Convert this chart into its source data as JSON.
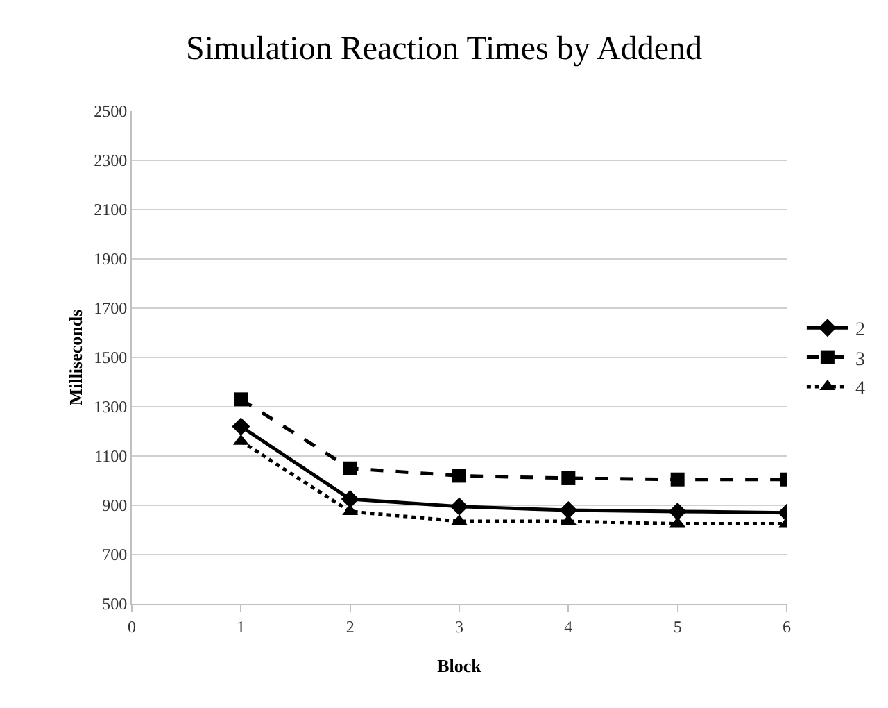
{
  "chart_data": {
    "type": "line",
    "title": "Simulation Reaction Times by Addend",
    "xlabel": "Block",
    "ylabel": "Milliseconds",
    "x": [
      1,
      2,
      3,
      4,
      5,
      6
    ],
    "series": [
      {
        "name": "2",
        "color": "#000000",
        "marker": "diamond",
        "line_style": "solid",
        "values": [
          1220,
          925,
          895,
          880,
          875,
          870
        ]
      },
      {
        "name": "3",
        "color": "#000000",
        "marker": "square",
        "line_style": "dashed",
        "values": [
          1330,
          1050,
          1020,
          1010,
          1005,
          1005
        ]
      },
      {
        "name": "4",
        "color": "#000000",
        "marker": "triangle",
        "line_style": "dotted",
        "values": [
          1160,
          875,
          835,
          835,
          825,
          825
        ]
      }
    ],
    "xlim": [
      0,
      6
    ],
    "xticks": [
      0,
      1,
      2,
      3,
      4,
      5,
      6
    ],
    "ylim": [
      500,
      2500
    ],
    "yticks": [
      500,
      700,
      900,
      1100,
      1300,
      1500,
      1700,
      1900,
      2100,
      2300,
      2500
    ],
    "grid": "y",
    "legend": "right"
  }
}
